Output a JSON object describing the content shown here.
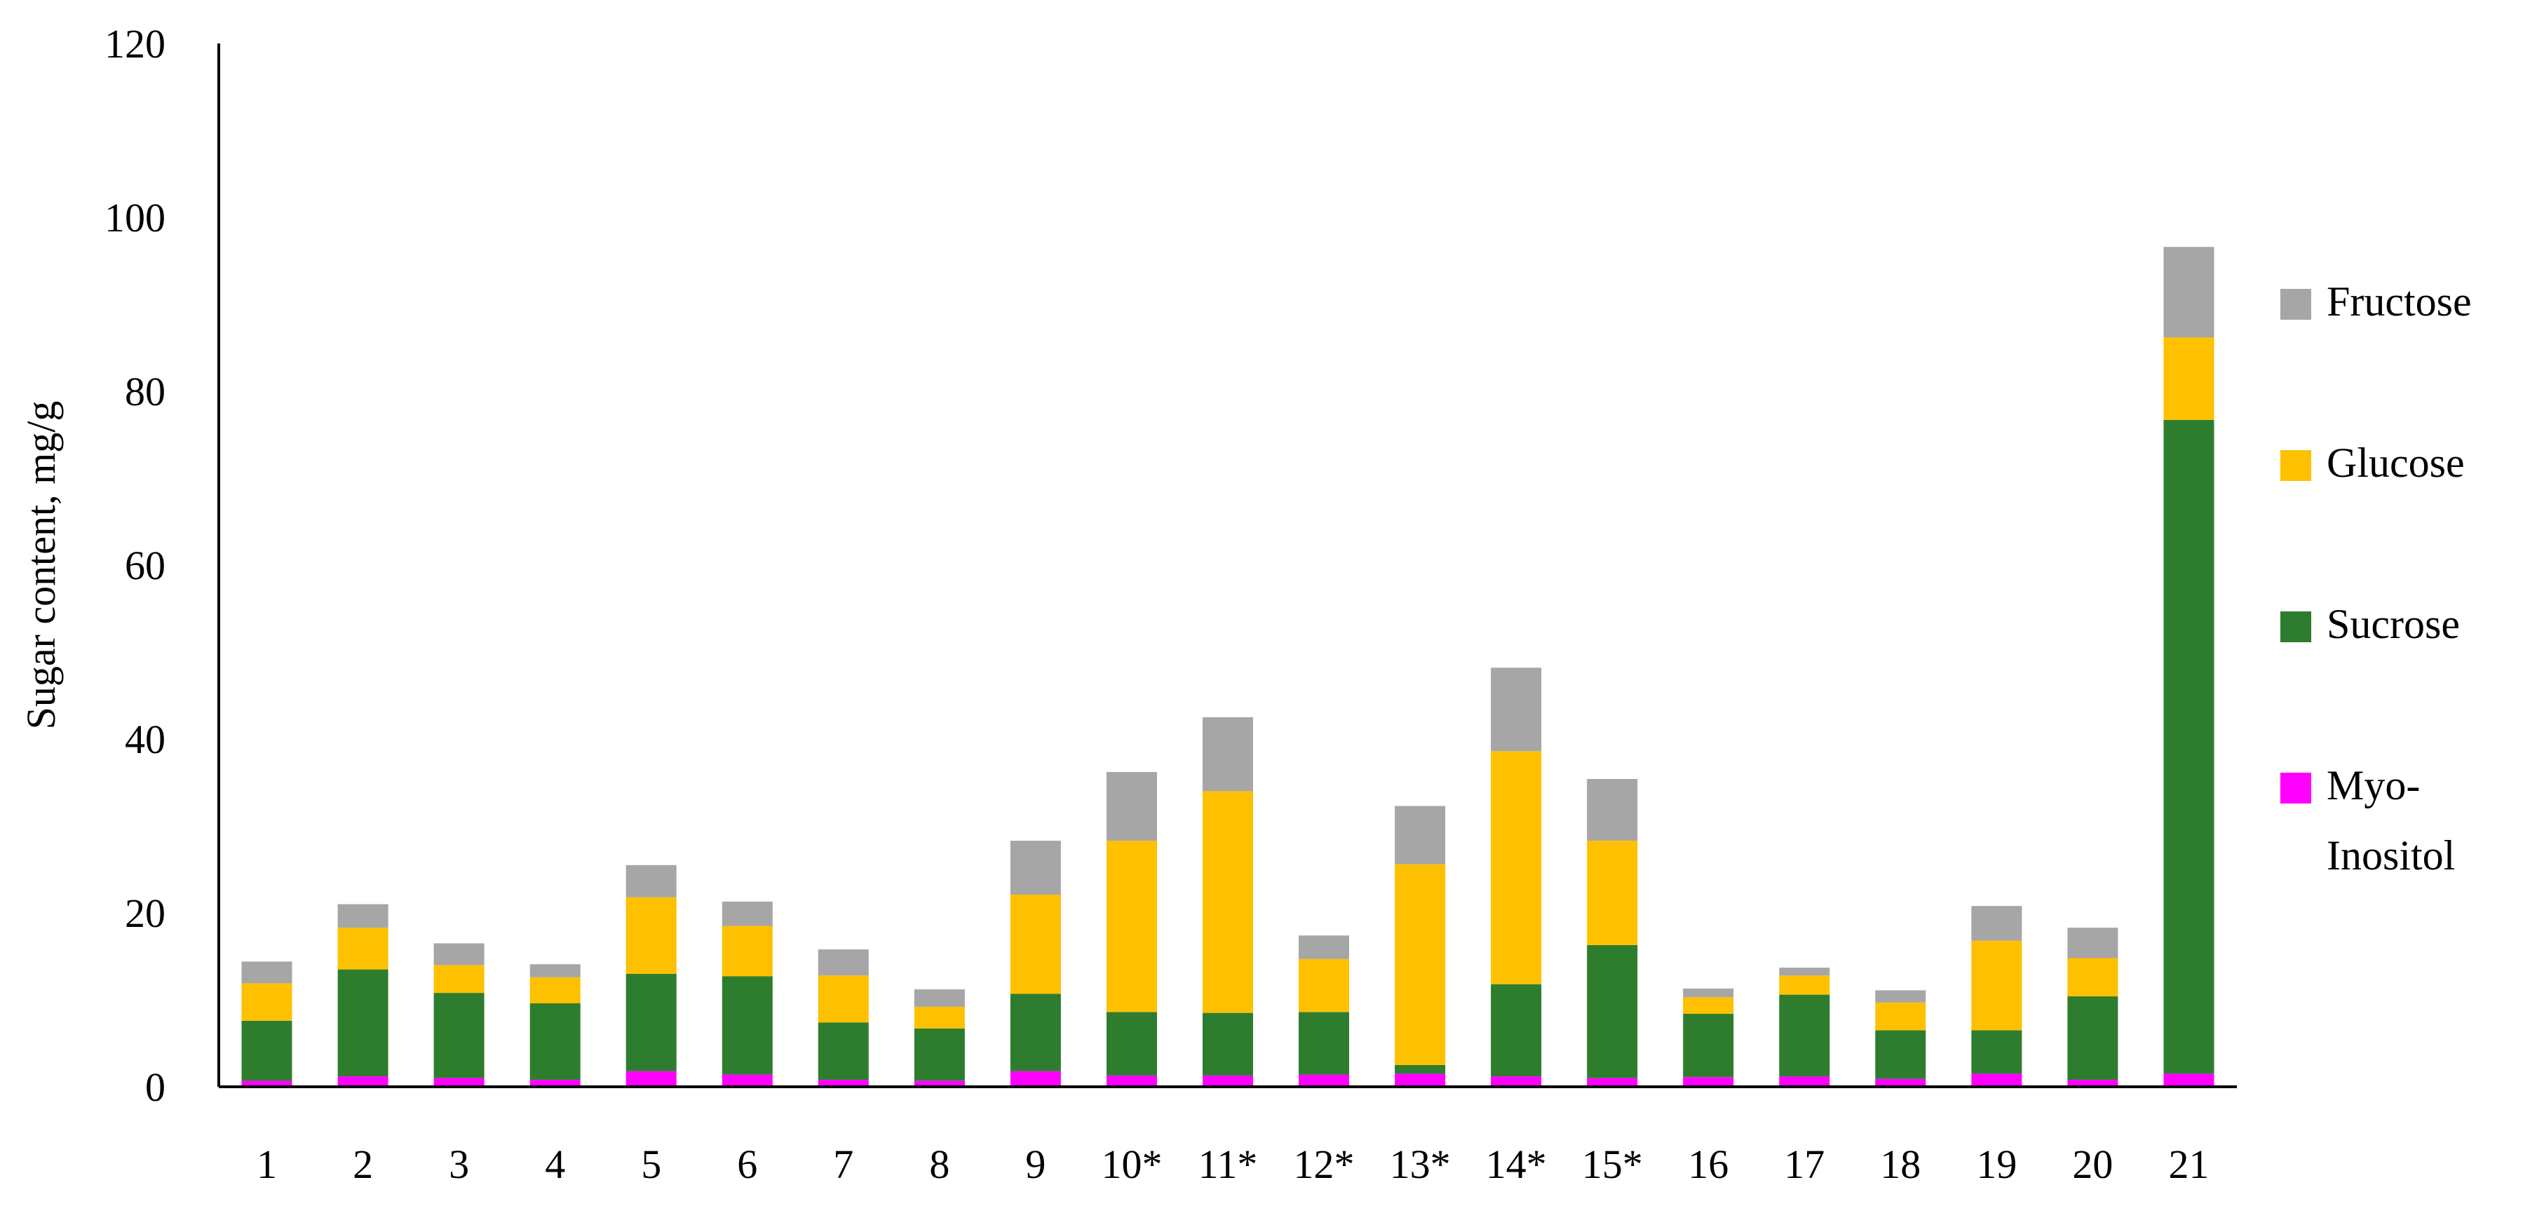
{
  "chart_data": {
    "type": "bar",
    "stacked": true,
    "categories": [
      "1",
      "2",
      "3",
      "4",
      "5",
      "6",
      "7",
      "8",
      "9",
      "10*",
      "11*",
      "12*",
      "13*",
      "14*",
      "15*",
      "16",
      "17",
      "18",
      "19",
      "20",
      "21"
    ],
    "series": [
      {
        "name": "Myo-Inositol",
        "legend_lines": [
          "Myo-",
          "Inositol"
        ],
        "color": "#ff00ff",
        "values": [
          0.7,
          1.2,
          1.0,
          0.8,
          1.8,
          1.4,
          0.8,
          0.7,
          1.8,
          1.3,
          1.3,
          1.4,
          1.5,
          1.2,
          1.0,
          1.1,
          1.2,
          0.9,
          1.5,
          0.8,
          1.5
        ]
      },
      {
        "name": "Sucrose",
        "legend_lines": [
          "Sucrose"
        ],
        "color": "#2e7d2e",
        "values": [
          6.9,
          12.3,
          9.8,
          8.8,
          11.2,
          11.3,
          6.6,
          6.0,
          8.9,
          7.3,
          7.2,
          7.2,
          1.0,
          10.6,
          15.3,
          7.3,
          9.4,
          5.6,
          5.0,
          9.6,
          75.2
        ]
      },
      {
        "name": "Glucose",
        "legend_lines": [
          "Glucose"
        ],
        "color": "#ffc000",
        "values": [
          4.3,
          4.8,
          3.2,
          3.0,
          8.8,
          5.8,
          5.4,
          2.5,
          11.4,
          19.7,
          25.5,
          6.1,
          23.1,
          26.8,
          12.0,
          1.9,
          2.2,
          3.2,
          10.3,
          4.4,
          9.5
        ]
      },
      {
        "name": "Fructose",
        "legend_lines": [
          "Fructose"
        ],
        "color": "#a6a6a6",
        "values": [
          2.5,
          2.7,
          2.5,
          1.5,
          3.7,
          2.8,
          3.0,
          2.0,
          6.2,
          7.9,
          8.5,
          2.7,
          6.7,
          9.6,
          7.1,
          1.0,
          0.9,
          1.4,
          4.0,
          3.5,
          10.4
        ]
      }
    ],
    "ylabel": "Sugar content, mg/g",
    "xlabel": "",
    "ylim": [
      0,
      120
    ],
    "yticks": [
      "0",
      "20",
      "40",
      "60",
      "80",
      "100",
      "120"
    ],
    "grid": false,
    "legend_position": "right",
    "legend_order": [
      "Fructose",
      "Glucose",
      "Sucrose",
      "Myo-Inositol"
    ]
  }
}
